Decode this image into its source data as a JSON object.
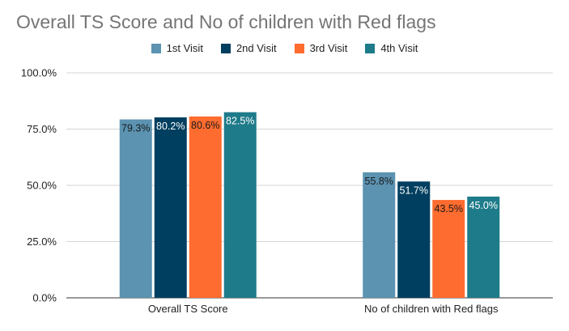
{
  "chart_data": {
    "type": "bar",
    "title": "Overall TS Score and No of children with Red flags",
    "categories": [
      "Overall TS Score",
      "No of children with Red flags"
    ],
    "series": [
      {
        "name": "1st Visit",
        "values": [
          79.3,
          55.8
        ],
        "labels": [
          "79.3%",
          "55.8%"
        ],
        "color": "#5b93b1",
        "label_color": "#1a1a1a"
      },
      {
        "name": "2nd Visit",
        "values": [
          80.2,
          51.7
        ],
        "labels": [
          "80.2%",
          "51.7%"
        ],
        "color": "#003f5f",
        "label_color": "#ffffff"
      },
      {
        "name": "3rd Visit",
        "values": [
          80.6,
          43.5
        ],
        "labels": [
          "80.6%",
          "43.5%"
        ],
        "color": "#ff6c2f",
        "label_color": "#1a1a1a"
      },
      {
        "name": "4th Visit",
        "values": [
          82.5,
          45.0
        ],
        "labels": [
          "82.5%",
          "45.0%"
        ],
        "color": "#1e7b8a",
        "label_color": "#ffffff"
      }
    ],
    "yticks": [
      "0.0%",
      "25.0%",
      "50.0%",
      "75.0%",
      "100.0%"
    ],
    "ylim": [
      0,
      100
    ],
    "grid": true,
    "legend_position": "top-center"
  }
}
